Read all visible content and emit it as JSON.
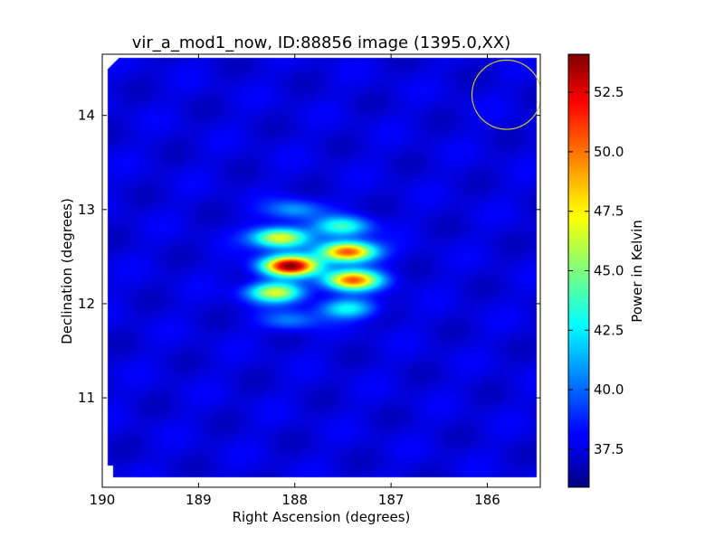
{
  "chart_data": {
    "type": "heatmap",
    "title": "vir_a_mod1_now, ID:88856 image (1395.0,XX)",
    "xlabel": "Right Ascension (degrees)",
    "ylabel": "Declination (degrees)",
    "xlim": [
      190.0,
      185.45
    ],
    "ylim": [
      10.05,
      14.65
    ],
    "x_ticks": [
      190,
      189,
      188,
      187,
      186
    ],
    "x_tick_labels": [
      "190",
      "189",
      "188",
      "187",
      "186"
    ],
    "y_ticks": [
      11,
      12,
      13,
      14
    ],
    "y_tick_labels": [
      "11",
      "12",
      "13",
      "14"
    ],
    "colormap": "jet",
    "colorbar": {
      "label": "Power in Kelvin",
      "min": 35.9,
      "max": 54.1,
      "ticks": [
        37.5,
        40.0,
        42.5,
        45.0,
        47.5,
        50.0,
        52.5
      ],
      "tick_labels": [
        "37.5",
        "40.0",
        "42.5",
        "45.0",
        "47.5",
        "50.0",
        "52.5"
      ]
    },
    "background_level": 37.6,
    "sources": [
      {
        "ra": 188.05,
        "dec": 12.4,
        "peak": 53.8
      },
      {
        "ra": 187.45,
        "dec": 12.55,
        "peak": 51.0
      },
      {
        "ra": 187.4,
        "dec": 12.25,
        "peak": 50.0
      },
      {
        "ra": 188.15,
        "dec": 12.7,
        "peak": 47.5
      },
      {
        "ra": 188.2,
        "dec": 12.12,
        "peak": 46.5
      },
      {
        "ra": 187.5,
        "dec": 12.82,
        "peak": 43.5
      },
      {
        "ra": 187.45,
        "dec": 11.95,
        "peak": 42.8
      },
      {
        "ra": 188.0,
        "dec": 13.0,
        "peak": 41.0
      },
      {
        "ra": 188.05,
        "dec": 11.82,
        "peak": 40.5
      }
    ],
    "beam_circle": {
      "ra": 185.8,
      "dec": 14.22,
      "radius_deg": 0.36,
      "color": "#d8c832"
    }
  }
}
